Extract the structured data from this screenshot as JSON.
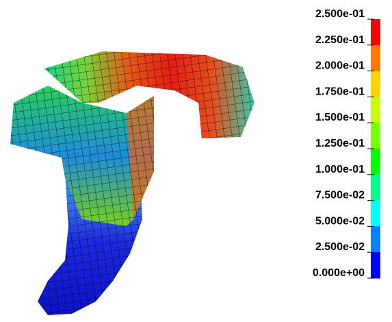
{
  "colorbar": {
    "labels": [
      "2.500e-01",
      "2.250e-01",
      "2.000e-01",
      "1.750e-01",
      "1.500e-01",
      "1.250e-01",
      "1.000e-01",
      "7.500e-02",
      "5.000e-02",
      "2.500e-02",
      "0.000e+00"
    ],
    "colors": [
      "#ff0000",
      "#ff7800",
      "#ffd200",
      "#c8ff00",
      "#78ff00",
      "#00ff00",
      "#00ff8c",
      "#00ffff",
      "#0082ff",
      "#0000ff"
    ]
  }
}
